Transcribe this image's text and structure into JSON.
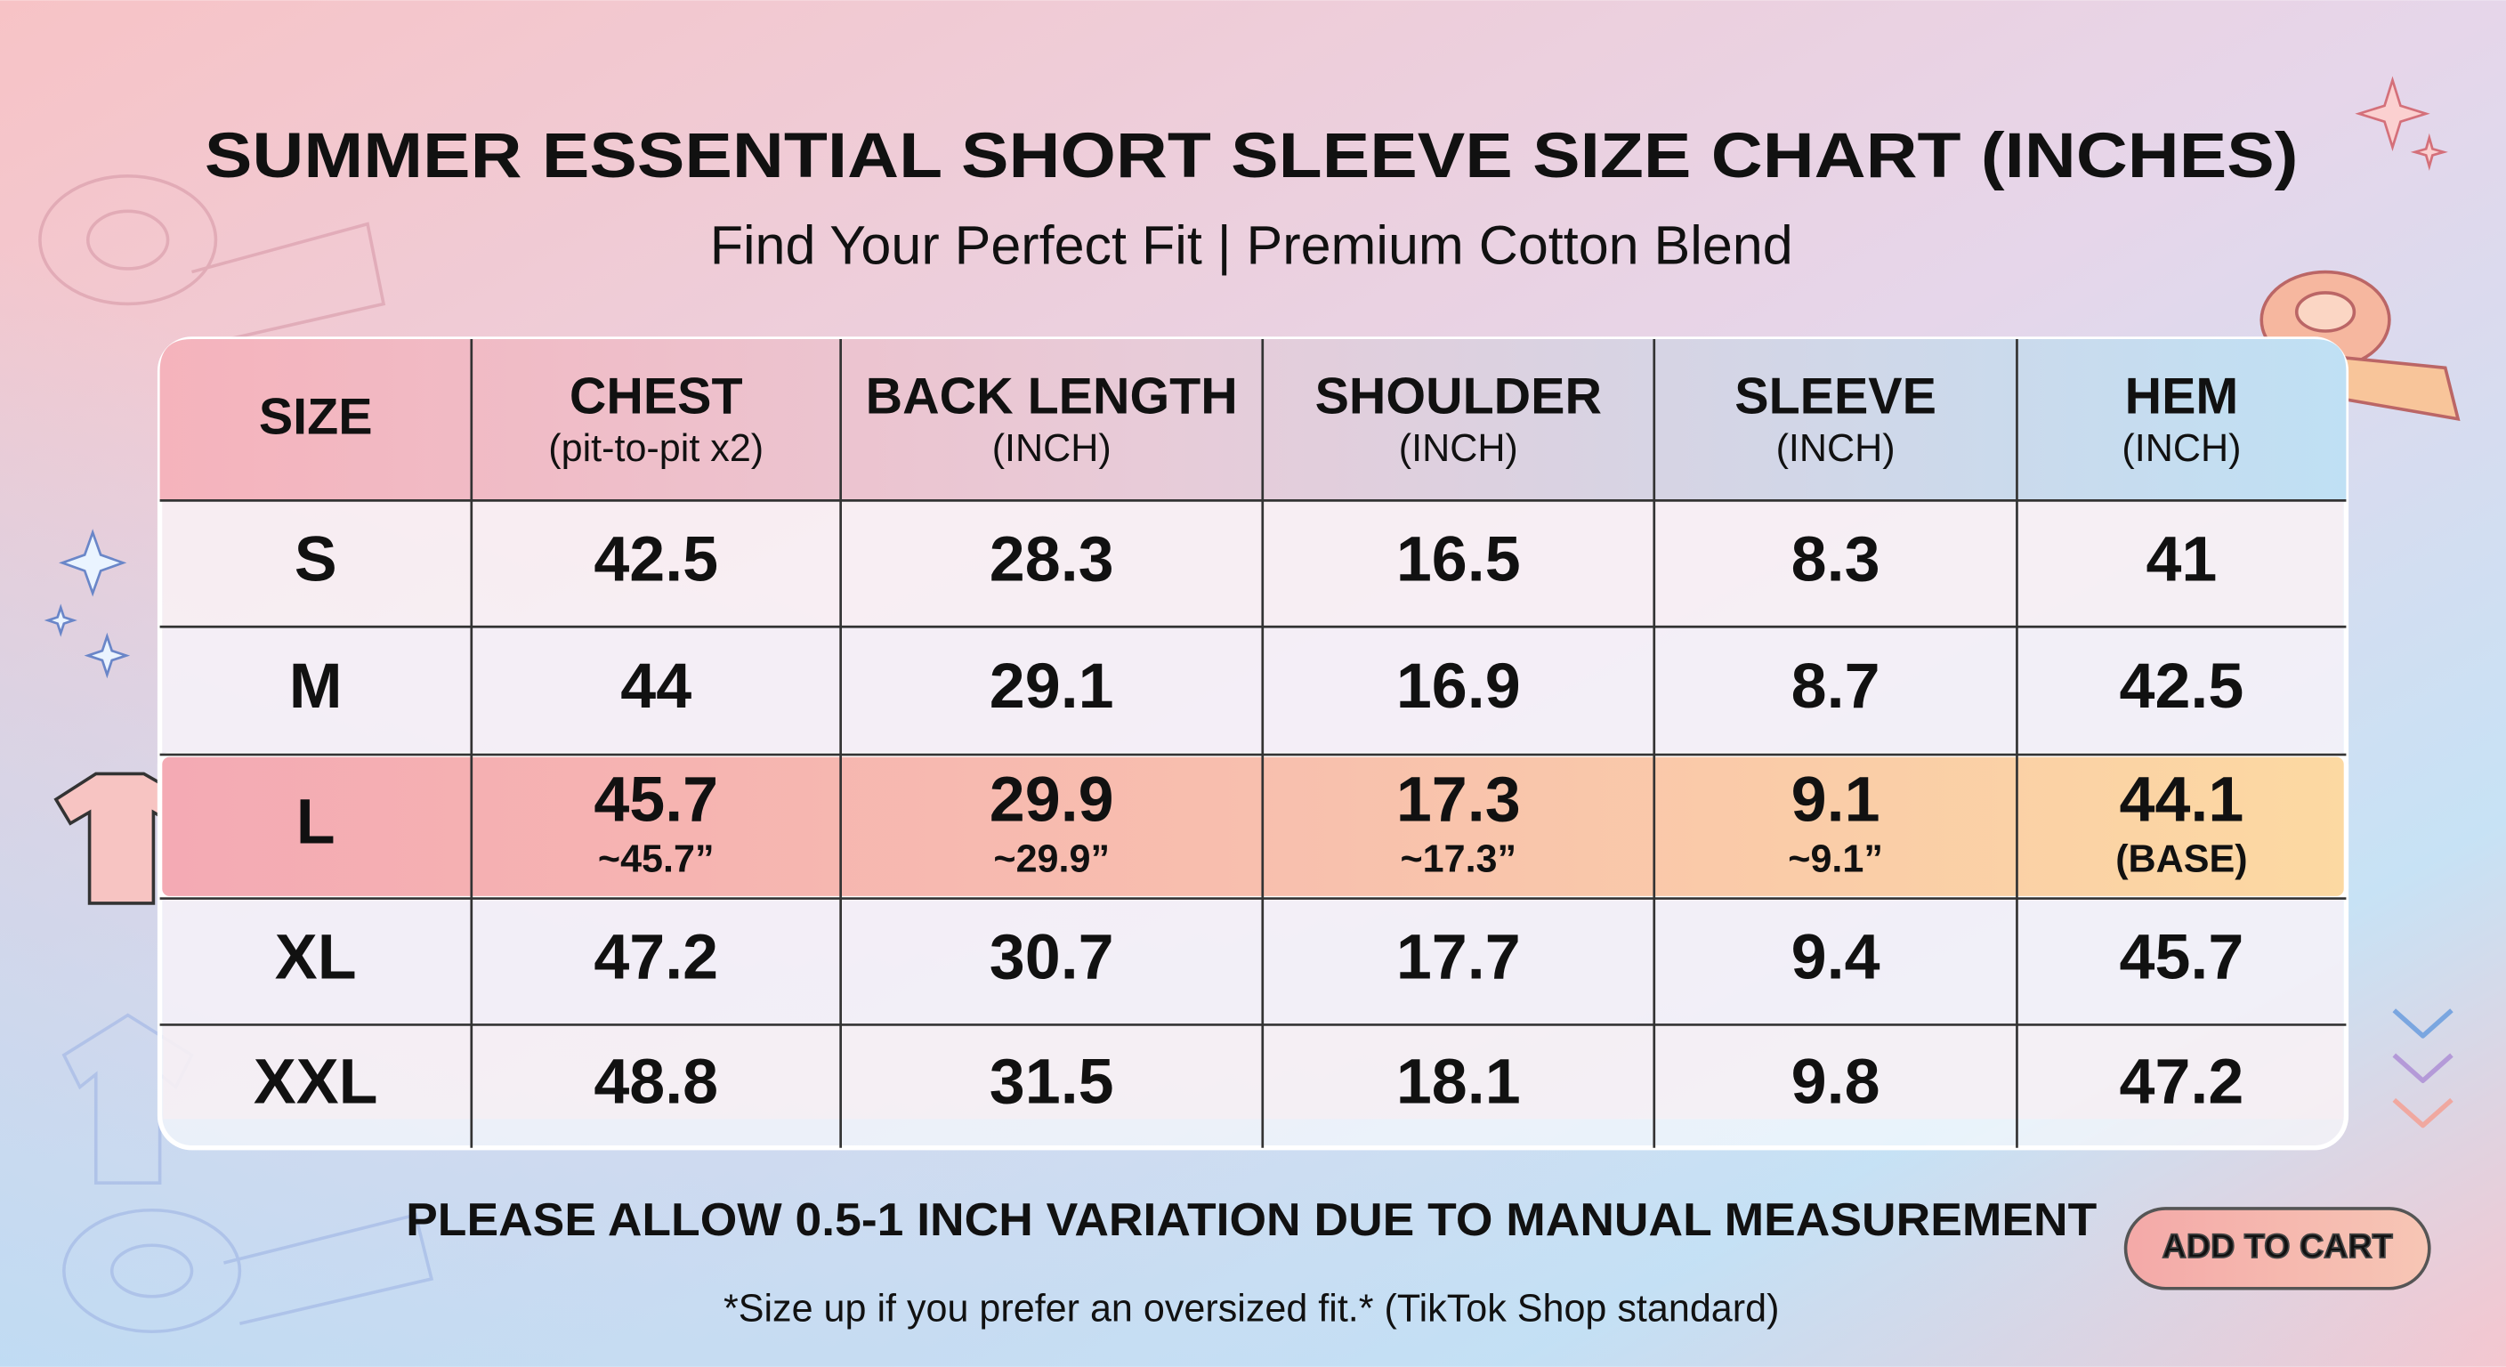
{
  "header": {
    "title": "SUMMER ESSENTIAL SHORT SLEEVE SIZE CHART (INCHES)",
    "subtitle": "Find Your Perfect Fit | Premium Cotton Blend"
  },
  "table": {
    "columns": [
      {
        "label": "SIZE"
      },
      {
        "label": "CHEST",
        "sublabel": "(pit-to-pit x2)"
      },
      {
        "label": "BACK LENGTH",
        "sublabel": "(INCH)"
      },
      {
        "label": "SHOULDER",
        "sublabel": "(INCH)"
      },
      {
        "label": "SLEEVE",
        "sublabel": "(INCH)"
      },
      {
        "label": "HEM",
        "sublabel": "(INCH)"
      }
    ],
    "rows": [
      {
        "cells": [
          "S",
          "42.5",
          "28.3",
          "16.5",
          "8.3",
          "41"
        ]
      },
      {
        "cells": [
          "M",
          "44",
          "29.1",
          "16.9",
          "8.7",
          "42.5"
        ]
      },
      {
        "cells": [
          "L",
          "45.7",
          "29.9",
          "17.3",
          "9.1",
          "44.1"
        ],
        "notes": [
          "~45.7”",
          "~29.9”",
          "~17.3”",
          "~9.1”",
          "(BASE)"
        ]
      },
      {
        "cells": [
          "XL",
          "47.2",
          "30.7",
          "17.7",
          "9.4",
          "45.7"
        ]
      },
      {
        "cells": [
          "XXL",
          "48.8",
          "31.5",
          "18.1",
          "9.8",
          "47.2"
        ]
      }
    ]
  },
  "footer": {
    "note": "PLEASE ALLOW 0.5-1 INCH VARIATION DUE TO MANUAL MEASUREMENT",
    "footnote": "*Size up if you prefer an oversized fit.* (TikTok Shop standard)"
  },
  "button": {
    "label": "ADD TO CART"
  }
}
